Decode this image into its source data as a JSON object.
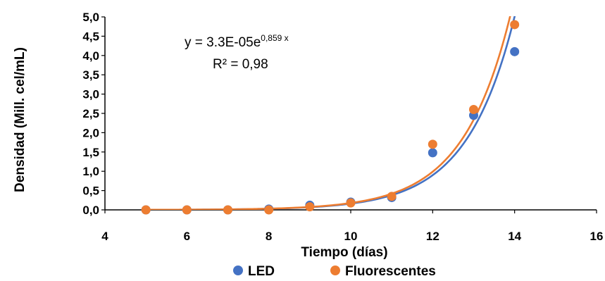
{
  "chart_data": {
    "type": "scatter",
    "title": "",
    "xlabel": "Tiempo (días)",
    "ylabel": "Densidad (Mill. cel/mL)",
    "xlim": [
      4,
      16
    ],
    "ylim": [
      0,
      5
    ],
    "x_ticks": [
      "4",
      "6",
      "8",
      "10",
      "12",
      "14",
      "16"
    ],
    "y_ticks": [
      "0,0",
      "0,5",
      "1,0",
      "1,5",
      "2,0",
      "2,5",
      "3,0",
      "3,5",
      "4,0",
      "4,5",
      "5,0"
    ],
    "grid": false,
    "legend_position": "bottom",
    "series": [
      {
        "name": "LED",
        "color": "#4472C4",
        "x": [
          5,
          6,
          7,
          8,
          9,
          10,
          11,
          12,
          13,
          14
        ],
        "y": [
          0.0,
          0.0,
          0.0,
          0.02,
          0.12,
          0.2,
          0.32,
          1.48,
          2.45,
          4.1
        ],
        "trendline": {
          "type": "exponential",
          "a": 3e-05,
          "b": 0.859
        }
      },
      {
        "name": "Fluorescentes",
        "color": "#ED7D31",
        "x": [
          5,
          6,
          7,
          8,
          9,
          10,
          11,
          12,
          13,
          14
        ],
        "y": [
          0.0,
          0.0,
          0.0,
          0.0,
          0.08,
          0.18,
          0.35,
          1.7,
          2.6,
          4.8
        ],
        "trendline": {
          "type": "exponential",
          "a": 3.3e-05,
          "b": 0.859
        }
      }
    ],
    "annotations": {
      "equation_prefix": "y = 3.3E-05e",
      "equation_exponent": "0,859 x",
      "r_squared": "R² = 0,98"
    }
  }
}
